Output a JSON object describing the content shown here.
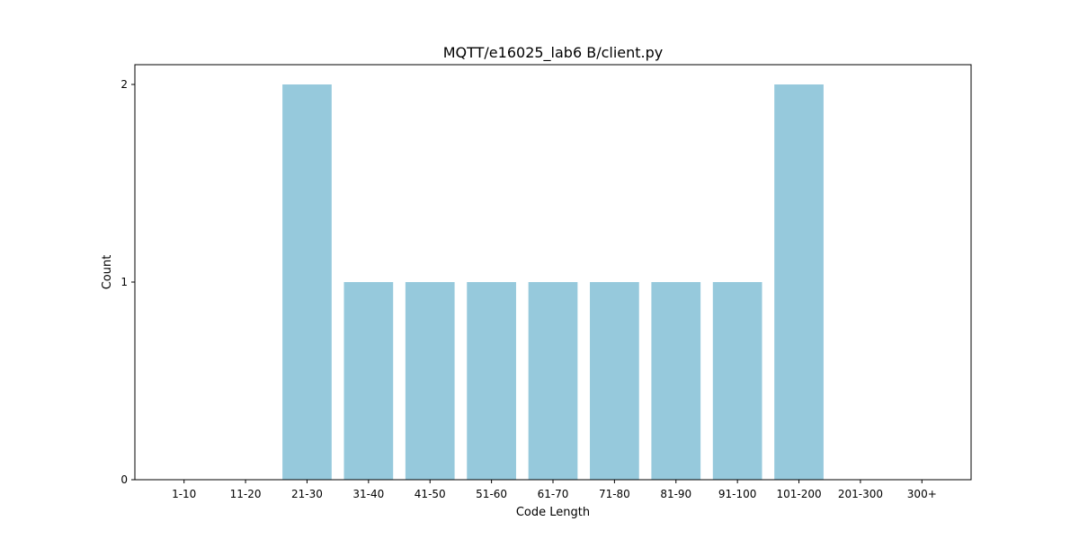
{
  "chart_data": {
    "type": "bar",
    "title": "MQTT/e16025_lab6  B/client.py",
    "xlabel": "Code Length",
    "ylabel": "Count",
    "categories": [
      "1-10",
      "11-20",
      "21-30",
      "31-40",
      "41-50",
      "51-60",
      "61-70",
      "71-80",
      "81-90",
      "91-100",
      "101-200",
      "201-300",
      "300+"
    ],
    "values": [
      0,
      0,
      2,
      1,
      1,
      1,
      1,
      1,
      1,
      1,
      2,
      0,
      0
    ],
    "yticks": [
      0,
      1,
      2
    ],
    "ylim": [
      0,
      2.1
    ],
    "grid": false,
    "legend": "none",
    "bar_color": "#96c9dc"
  }
}
